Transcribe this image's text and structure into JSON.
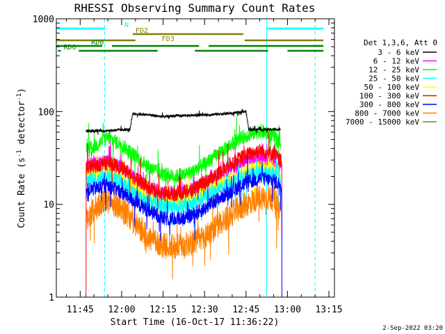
{
  "chart_data": {
    "type": "line",
    "title": "RHESSI Observing Summary Count Rates",
    "xlabel": "Start Time (16-Oct-17 11:36:22)",
    "ylabel_main": "Count Rate (s",
    "ylabel_sup1": "-1",
    "ylabel_mid": " detector",
    "ylabel_sup2": "-1",
    "ylabel_end": ")",
    "x_scale": "time",
    "xlim": [
      "11:36:22",
      "13:17:00"
    ],
    "y_scale": "log",
    "ylim": [
      1,
      1000
    ],
    "x_ticks": [
      "11:45",
      "12:00",
      "12:15",
      "12:30",
      "12:45",
      "13:00",
      "13:15"
    ],
    "y_ticks": [
      {
        "value": 1,
        "label": "1"
      },
      {
        "value": 10,
        "label": "10"
      },
      {
        "value": 100,
        "label": "100"
      },
      {
        "value": 1000,
        "label": "1000"
      }
    ],
    "legend_title": "Det 1,3,6, Att 0",
    "legend_position": "right",
    "series": [
      {
        "name": "3 - 6 keV",
        "color": "#000000",
        "points": [
          [
            "11:47:00",
            null
          ],
          [
            "11:47:10",
            62
          ],
          [
            "11:53:00",
            62
          ],
          [
            "12:03:00",
            64
          ],
          [
            "12:04:00",
            95
          ],
          [
            "12:10:00",
            92
          ],
          [
            "12:15:00",
            88
          ],
          [
            "12:20:00",
            90
          ],
          [
            "12:30:00",
            92
          ],
          [
            "12:40:00",
            96
          ],
          [
            "12:45:00",
            100
          ],
          [
            "12:46:00",
            64
          ],
          [
            "12:53:00",
            64
          ],
          [
            "12:57:30",
            64
          ],
          [
            "12:58:00",
            null
          ]
        ]
      },
      {
        "name": "6 - 12 keV",
        "color": "#ff00ff",
        "points": [
          [
            "11:47:10",
            26
          ],
          [
            "11:55:00",
            29
          ],
          [
            "12:00:00",
            25
          ],
          [
            "12:05:00",
            19
          ],
          [
            "12:10:00",
            15
          ],
          [
            "12:15:00",
            13.5
          ],
          [
            "12:20:00",
            13.5
          ],
          [
            "12:25:00",
            14.5
          ],
          [
            "12:30:00",
            17
          ],
          [
            "12:35:00",
            21
          ],
          [
            "12:40:00",
            25
          ],
          [
            "12:45:00",
            30
          ],
          [
            "12:50:00",
            32
          ],
          [
            "12:55:00",
            30
          ],
          [
            "12:57:30",
            25
          ]
        ]
      },
      {
        "name": "12 - 25 keV",
        "color": "#00ff00",
        "points": [
          [
            "11:47:10",
            38
          ],
          [
            "11:50:00",
            42
          ],
          [
            "11:55:00",
            52
          ],
          [
            "12:00:00",
            44
          ],
          [
            "12:05:00",
            33
          ],
          [
            "12:10:00",
            25
          ],
          [
            "12:15:00",
            21
          ],
          [
            "12:20:00",
            20
          ],
          [
            "12:25:00",
            22
          ],
          [
            "12:30:00",
            27
          ],
          [
            "12:35:00",
            35
          ],
          [
            "12:40:00",
            45
          ],
          [
            "12:45:00",
            55
          ],
          [
            "12:50:00",
            62
          ],
          [
            "12:55:00",
            55
          ],
          [
            "12:57:30",
            45
          ]
        ]
      },
      {
        "name": "25 - 50 keV",
        "color": "#00ffff",
        "points": [
          [
            "11:47:10",
            18
          ],
          [
            "11:55:00",
            20
          ],
          [
            "12:00:00",
            17
          ],
          [
            "12:05:00",
            13
          ],
          [
            "12:10:00",
            10.5
          ],
          [
            "12:15:00",
            9.5
          ],
          [
            "12:20:00",
            9.5
          ],
          [
            "12:25:00",
            10
          ],
          [
            "12:30:00",
            12
          ],
          [
            "12:35:00",
            14.5
          ],
          [
            "12:40:00",
            17
          ],
          [
            "12:45:00",
            20
          ],
          [
            "12:50:00",
            22
          ],
          [
            "12:55:00",
            21
          ],
          [
            "12:57:30",
            17
          ]
        ]
      },
      {
        "name": "50 - 100 keV",
        "color": "#ffff00",
        "points": [
          [
            "11:47:10",
            20
          ],
          [
            "11:55:00",
            23
          ],
          [
            "12:00:00",
            20
          ],
          [
            "12:05:00",
            15
          ],
          [
            "12:10:00",
            11.5
          ],
          [
            "12:15:00",
            10.5
          ],
          [
            "12:20:00",
            10.5
          ],
          [
            "12:25:00",
            11
          ],
          [
            "12:30:00",
            13.5
          ],
          [
            "12:35:00",
            16
          ],
          [
            "12:40:00",
            19
          ],
          [
            "12:45:00",
            23
          ],
          [
            "12:50:00",
            25
          ],
          [
            "12:55:00",
            24
          ],
          [
            "12:57:30",
            20
          ]
        ]
      },
      {
        "name": "100 - 300 keV",
        "color": "#ff0000",
        "points": [
          [
            "11:47:00",
            1
          ],
          [
            "11:47:10",
            25
          ],
          [
            "11:55:00",
            28
          ],
          [
            "12:00:00",
            25
          ],
          [
            "12:05:00",
            19
          ],
          [
            "12:10:00",
            15
          ],
          [
            "12:15:00",
            13
          ],
          [
            "12:20:00",
            13
          ],
          [
            "12:25:00",
            14
          ],
          [
            "12:30:00",
            17
          ],
          [
            "12:35:00",
            22
          ],
          [
            "12:40:00",
            28
          ],
          [
            "12:45:00",
            34
          ],
          [
            "12:50:00",
            38
          ],
          [
            "12:55:00",
            35
          ],
          [
            "12:57:30",
            30
          ],
          [
            "12:58:00",
            4
          ]
        ]
      },
      {
        "name": "300 - 800 keV",
        "color": "#0000ff",
        "points": [
          [
            "11:47:10",
            14
          ],
          [
            "11:55:00",
            16
          ],
          [
            "12:00:00",
            13.5
          ],
          [
            "12:05:00",
            10.5
          ],
          [
            "12:10:00",
            8.5
          ],
          [
            "12:15:00",
            7
          ],
          [
            "12:20:00",
            7
          ],
          [
            "12:25:00",
            7.5
          ],
          [
            "12:30:00",
            9
          ],
          [
            "12:35:00",
            11.5
          ],
          [
            "12:40:00",
            14
          ],
          [
            "12:45:00",
            17
          ],
          [
            "12:50:00",
            19
          ],
          [
            "12:55:00",
            18
          ],
          [
            "12:57:30",
            16
          ],
          [
            "12:58:00",
            1
          ]
        ]
      },
      {
        "name": "800 - 7000 keV",
        "color": "#ff8000",
        "points": [
          [
            "11:47:10",
            7
          ],
          [
            "11:50:00",
            9
          ],
          [
            "11:55:00",
            11
          ],
          [
            "12:00:00",
            9
          ],
          [
            "12:05:00",
            6
          ],
          [
            "12:10:00",
            4.3
          ],
          [
            "12:15:00",
            3.6
          ],
          [
            "12:20:00",
            3.5
          ],
          [
            "12:25:00",
            3.8
          ],
          [
            "12:30:00",
            4.5
          ],
          [
            "12:35:00",
            6
          ],
          [
            "12:40:00",
            8
          ],
          [
            "12:45:00",
            10
          ],
          [
            "12:50:00",
            12
          ],
          [
            "12:55:00",
            11.5
          ],
          [
            "12:57:30",
            9
          ]
        ]
      },
      {
        "name": "7000 - 15000 keV",
        "color": "#808000",
        "points": []
      }
    ],
    "flags": [
      {
        "label": "N",
        "color": "#00ffff",
        "label_at": "12:00:00",
        "segments": [
          [
            "11:36:22",
            "11:54:00"
          ],
          [
            "12:52:30",
            "13:13:00"
          ]
        ]
      },
      {
        "label": "FD2",
        "color": "#808000",
        "label_at": "12:04:00",
        "segments": [
          [
            "12:04:00",
            "12:44:00"
          ]
        ]
      },
      {
        "label": "FD3",
        "color": "#808000",
        "label_at": "12:10:00",
        "segments": [
          [
            "11:36:22",
            "12:05:00"
          ],
          [
            "12:44:30",
            "13:13:00"
          ]
        ]
      },
      {
        "label": "RD0",
        "color": "#008000",
        "label_at": "11:48:00",
        "segments": [
          [
            "11:36:22",
            "11:53:00"
          ],
          [
            "11:56:30",
            "12:28:00"
          ],
          [
            "12:31:30",
            "13:13:00"
          ]
        ]
      },
      {
        "label": "RD6",
        "color": "#008000",
        "label_at": "11:38:00",
        "segments": [
          [
            "11:37:00",
            "11:38:00"
          ],
          [
            "11:44:30",
            "12:13:00"
          ],
          [
            "12:26:30",
            "12:53:00"
          ],
          [
            "13:00:00",
            "13:13:00"
          ]
        ]
      }
    ],
    "vlines": [
      {
        "time": "11:36:22",
        "style": "solid",
        "color": "#00ffff"
      },
      {
        "time": "11:53:50",
        "style": "dashed",
        "color": "#00ffff"
      },
      {
        "time": "12:52:30",
        "style": "solid",
        "color": "#00ffff"
      },
      {
        "time": "13:10:00",
        "style": "dashed",
        "color": "#00ffff"
      }
    ],
    "grid": false
  },
  "footer": {
    "timestamp": "2-Sep-2022 03:20"
  }
}
